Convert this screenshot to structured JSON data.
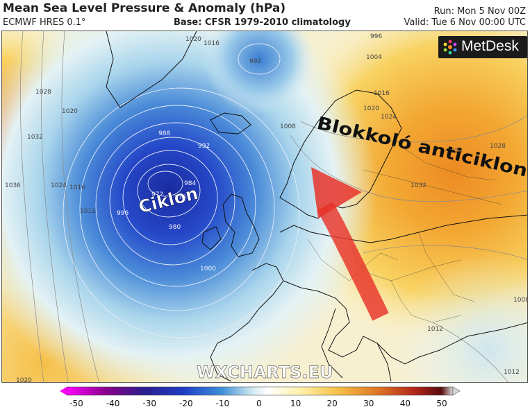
{
  "header": {
    "title": "Mean Sea Level Pressure & Anomaly (hPa)",
    "model": "ECMWF HRES 0.1°",
    "base": "Base: CFSR 1979-2010 climatology",
    "run": "Run: Mon 5 Nov 00Z",
    "valid": "Valid: Tue 6 Nov 00:00 UTC"
  },
  "logo": {
    "text": "MetDesk",
    "icon": "metdesk-logo-icon"
  },
  "watermark": "WXCHARTS.EU",
  "annotations": {
    "low_label": "Ciklon",
    "high_label": "Blokkoló anticiklon",
    "arrow_color": "#e8332a"
  },
  "isobars": {
    "low": [
      "972",
      "976",
      "980",
      "984",
      "988",
      "992",
      "996",
      "1000"
    ],
    "west": [
      "1012",
      "1016",
      "1020",
      "1024",
      "1028",
      "1032",
      "1036"
    ],
    "north": [
      "992",
      "996",
      "1004",
      "1016",
      "1020"
    ],
    "scandinavia": [
      "1008",
      "1016",
      "1020",
      "1024"
    ],
    "east": [
      "1024",
      "1028",
      "1032",
      "1008",
      "1012"
    ],
    "south": [
      "1020",
      "1012"
    ]
  },
  "colorbar": {
    "ticks": [
      "-50",
      "-40",
      "-30",
      "-20",
      "-10",
      "0",
      "10",
      "20",
      "30",
      "40",
      "50"
    ],
    "stops": [
      "#ff00ff",
      "#8b008b",
      "#2c1d8a",
      "#1f3bc6",
      "#3d8ed8",
      "#cfe9ef",
      "#ffffff",
      "#fff3b0",
      "#f6c248",
      "#e07a27",
      "#b3271b",
      "#5a0d0d",
      "#d9d9d9"
    ]
  },
  "colors": {
    "low_core": "#1e2fa8",
    "high_core": "#e8851f",
    "land_line": "#111111"
  }
}
